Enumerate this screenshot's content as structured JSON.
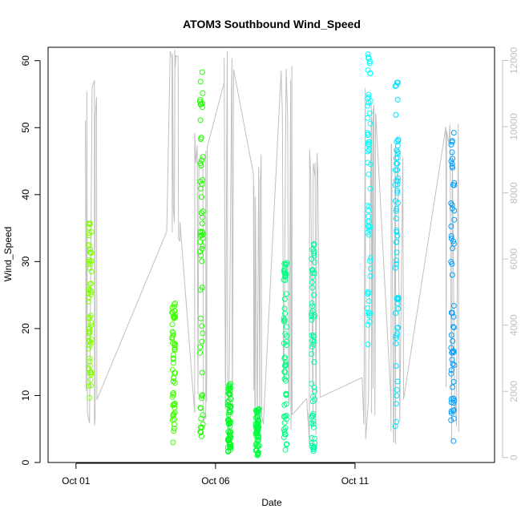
{
  "chart_data": {
    "type": "scatter",
    "title": "ATOM3 Southbound Wind_Speed",
    "xlabel": "Date",
    "ylabel": "Wind_Speed",
    "xlim": [
      "2023-09-30",
      "2023-10-16"
    ],
    "ylim": [
      0,
      62
    ],
    "y2lim": [
      -150,
      12400
    ],
    "x_ticks": [
      {
        "date": "2023-10-01",
        "label": "Oct 01"
      },
      {
        "date": "2023-10-06",
        "label": "Oct 06"
      },
      {
        "date": "2023-10-11",
        "label": "Oct 11"
      }
    ],
    "y_ticks": [
      0,
      10,
      20,
      30,
      40,
      50,
      60
    ],
    "y2_ticks": [
      0,
      2000,
      4000,
      6000,
      8000,
      10000,
      12000
    ],
    "y2_tick_labels": [
      "0",
      "2000",
      "4000",
      "6000",
      "8000",
      "10000",
      "12000"
    ],
    "grid": false,
    "legend": "none",
    "marker": "open-circle",
    "colors": {
      "secondary_series": "#c0c0c0",
      "axis": "#000000",
      "right_axis": "#c0c0c0"
    },
    "clusters": [
      {
        "date": "2023-10-01",
        "color": "#80ff00",
        "min": 9.5,
        "max": 36.7
      },
      {
        "date": "2023-10-04",
        "color": "#40ff00",
        "min": 2.8,
        "max": 24.0
      },
      {
        "date": "2023-10-05",
        "color": "#20ff00",
        "min": 3.8,
        "max": 60.0
      },
      {
        "date": "2023-10-06",
        "color": "#00ff20",
        "min": 1.5,
        "max": 11.8
      },
      {
        "date": "2023-10-07",
        "color": "#00ff40",
        "min": 1.0,
        "max": 8.2
      },
      {
        "date": "2023-10-08",
        "color": "#00ff80",
        "min": 1.8,
        "max": 30.7
      },
      {
        "date": "2023-10-09",
        "color": "#00ffa0",
        "min": 1.0,
        "max": 34.3
      },
      {
        "date": "2023-10-11",
        "color": "#00ffff",
        "min": 17.0,
        "max": 61.0
      },
      {
        "date": "2023-10-12",
        "color": "#00e0ff",
        "min": 5.2,
        "max": 57.0
      },
      {
        "date": "2023-10-14",
        "color": "#00a0ff",
        "min": 1.0,
        "max": 50.2
      }
    ],
    "secondary_series": {
      "bursts": [
        {
          "date": "2023-10-01",
          "min": 200,
          "max": 11700
        },
        {
          "date": "2023-10-04",
          "min": 6500,
          "max": 12400
        },
        {
          "date": "2023-10-05",
          "min": 300,
          "max": 10300
        },
        {
          "date": "2023-10-06",
          "min": 400,
          "max": 12300
        },
        {
          "date": "2023-10-07",
          "min": 300,
          "max": 9200
        },
        {
          "date": "2023-10-08",
          "min": 200,
          "max": 11900
        },
        {
          "date": "2023-10-09",
          "min": 300,
          "max": 9800
        },
        {
          "date": "2023-10-11",
          "min": 200,
          "max": 11500
        },
        {
          "date": "2023-10-12",
          "min": 300,
          "max": 9700
        },
        {
          "date": "2023-10-14",
          "min": 400,
          "max": 10200
        }
      ]
    }
  }
}
